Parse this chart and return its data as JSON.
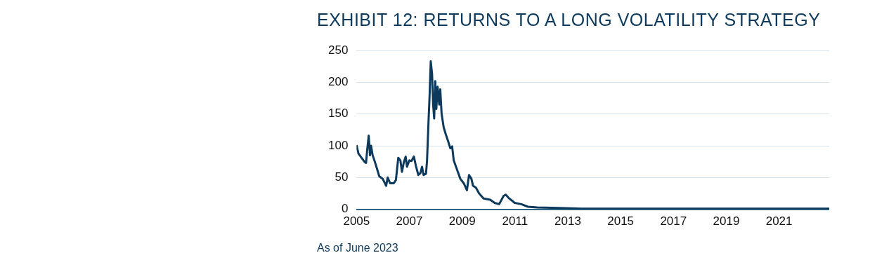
{
  "chart_data": {
    "type": "line",
    "title": "EXHIBIT 12: RETURNS TO A LONG VOLATILITY STRATEGY",
    "annotations": [
      "As of June 2023"
    ],
    "series": [
      {
        "color": "#0d3a5c",
        "x": [
          2005.0,
          2005.07,
          2005.19,
          2005.32,
          2005.36,
          2005.4,
          2005.46,
          2005.51,
          2005.55,
          2005.61,
          2005.7,
          2005.78,
          2005.86,
          2005.99,
          2006.12,
          2006.18,
          2006.27,
          2006.41,
          2006.49,
          2006.58,
          2006.66,
          2006.72,
          2006.79,
          2006.86,
          2006.91,
          2007.0,
          2007.08,
          2007.17,
          2007.25,
          2007.34,
          2007.42,
          2007.48,
          2007.54,
          2007.63,
          2007.67,
          2007.73,
          2007.76,
          2007.81,
          2007.86,
          2007.9,
          2007.94,
          2007.98,
          2008.02,
          2008.07,
          2008.13,
          2008.17,
          2008.22,
          2008.3,
          2008.38,
          2008.47,
          2008.55,
          2008.62,
          2008.68,
          2008.8,
          2008.93,
          2009.06,
          2009.18,
          2009.26,
          2009.35,
          2009.41,
          2009.52,
          2009.64,
          2009.81,
          2010.06,
          2010.23,
          2010.4,
          2010.57,
          2010.65,
          2010.78,
          2010.99,
          2011.24,
          2011.49,
          2011.83,
          2012.66,
          2013.5,
          2015.0,
          2017.0,
          2019.0,
          2021.0,
          2022.9
        ],
        "values": [
          101,
          88,
          81,
          74,
          73,
          92,
          116,
          85,
          100,
          85,
          74,
          63,
          52,
          48,
          37,
          50,
          41,
          41,
          46,
          81,
          77,
          59,
          74,
          83,
          67,
          77,
          76,
          83,
          68,
          54,
          57,
          67,
          54,
          56,
          77,
          143,
          172,
          233,
          213,
          165,
          143,
          202,
          158,
          193,
          165,
          189,
          151,
          129,
          118,
          107,
          96,
          99,
          77,
          63,
          48,
          41,
          30,
          54,
          48,
          37,
          34,
          25,
          17,
          15,
          10,
          8,
          21,
          23,
          17,
          10,
          8,
          4,
          3,
          2,
          1,
          1,
          1,
          1,
          1,
          1
        ]
      }
    ],
    "xlim": [
      2005,
      2022.9
    ],
    "xticks": [
      2005,
      2007,
      2009,
      2011,
      2013,
      2015,
      2017,
      2019,
      2021
    ],
    "ylim": [
      0,
      250
    ],
    "yticks": [
      0,
      50,
      100,
      150,
      200,
      250
    ],
    "grid": "y",
    "marker": "none",
    "line_style": "solid",
    "legend": false
  }
}
